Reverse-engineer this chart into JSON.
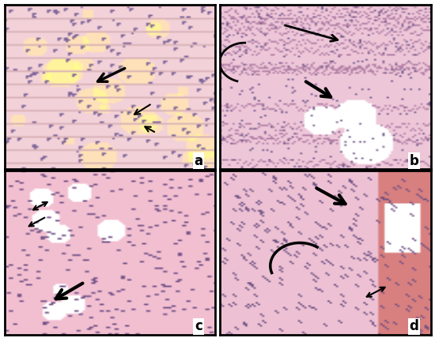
{
  "figure_width": 5.5,
  "figure_height": 4.28,
  "dpi": 100,
  "panels": [
    "a",
    "b",
    "c",
    "d"
  ],
  "panel_label_fontsize": 12,
  "panel_label_fontweight": "bold",
  "border_color": "#000000",
  "border_linewidth": 2,
  "background_color": "#ffffff",
  "panel_bg_colors": {
    "a": [
      "#f5c0c8",
      "#e8d090",
      "#f0b8c0",
      "#ddb870"
    ],
    "b": [
      "#f0b8c8",
      "#e8c0d0",
      "#d8a8c0",
      "#e0b8c8"
    ],
    "c": [
      "#f2b8c4",
      "#e8b0c0",
      "#dca8bc",
      "#f0b4c0"
    ],
    "d": [
      "#f0b4c0",
      "#e8b0be",
      "#dca8ba",
      "#eeb2be"
    ]
  },
  "tissue_pink": "#e8a0b0",
  "tissue_light_pink": "#f5c8d4",
  "tissue_purple": "#9080a8",
  "tissue_yellow": "#e8d890",
  "cell_outline": "#c890a0",
  "arrow_color": "#000000",
  "label_bg": "#ffffff",
  "outer_border_color": "#000000",
  "outer_border_linewidth": 3
}
